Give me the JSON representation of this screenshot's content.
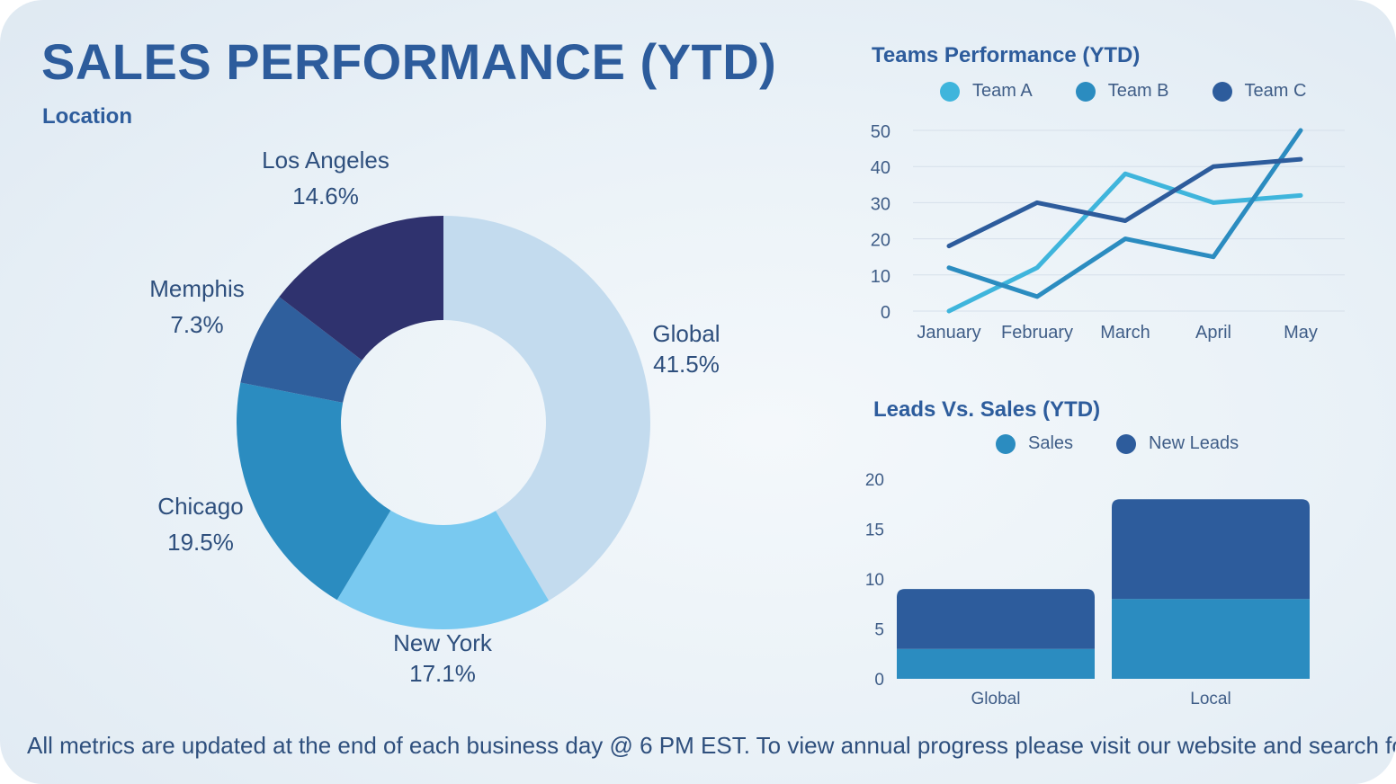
{
  "page": {
    "title": "SALES PERFORMANCE (YTD)",
    "subtitle": "Location",
    "footer": "All metrics are updated at the end of each business day @ 6 PM EST. To view annual progress please visit our website and search fo"
  },
  "chart_data": [
    {
      "type": "pie",
      "title": "Location",
      "donut": true,
      "labels": [
        "Global",
        "New York",
        "Chicago",
        "Memphis",
        "Los Angeles"
      ],
      "values": [
        41.5,
        17.1,
        19.5,
        7.3,
        14.6
      ],
      "value_labels": [
        "41.5%",
        "17.1%",
        "19.5%",
        "7.3%",
        "14.6%"
      ],
      "colors": [
        "#c3dbee",
        "#79c9f0",
        "#2b8cc0",
        "#2f5f9d",
        "#2f326e"
      ]
    },
    {
      "type": "line",
      "title": "Teams Performance (YTD)",
      "categories": [
        "January",
        "February",
        "March",
        "April",
        "May"
      ],
      "series": [
        {
          "name": "Team A",
          "values": [
            0,
            12,
            38,
            30,
            32
          ],
          "color": "#3fb5dc"
        },
        {
          "name": "Team B",
          "values": [
            12,
            4,
            20,
            15,
            50
          ],
          "color": "#2b8cc0"
        },
        {
          "name": "Team C",
          "values": [
            18,
            30,
            25,
            40,
            42
          ],
          "color": "#2d5c9c"
        }
      ],
      "ylim": [
        0,
        50
      ],
      "yticks": [
        0,
        10,
        20,
        30,
        40,
        50
      ],
      "grid": true,
      "legend": "top"
    },
    {
      "type": "bar",
      "stacked": true,
      "title": "Leads Vs. Sales (YTD)",
      "categories": [
        "Global",
        "Local"
      ],
      "series": [
        {
          "name": "Sales",
          "values": [
            3,
            8
          ],
          "color": "#2b8cc0"
        },
        {
          "name": "New Leads",
          "values": [
            6,
            10
          ],
          "color": "#2d5c9c"
        }
      ],
      "ylim": [
        0,
        20
      ],
      "yticks": [
        0,
        5,
        10,
        15,
        20
      ],
      "legend": "top"
    }
  ]
}
